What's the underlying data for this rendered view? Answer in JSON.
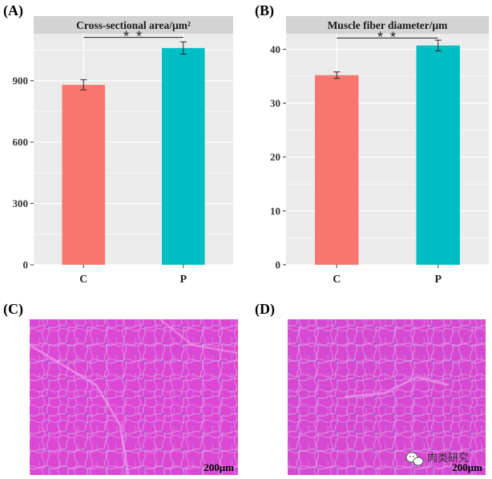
{
  "panels": {
    "A": "(A)",
    "B": "(B)",
    "C": "(C)",
    "D": "(D)"
  },
  "chart_data": [
    {
      "type": "bar",
      "title": "Cross-sectional area/μm²",
      "categories": [
        "C",
        "P"
      ],
      "values": [
        880,
        1060
      ],
      "errors": [
        25,
        30
      ],
      "colors": [
        "#F8766D",
        "#00BFC4"
      ],
      "ylim": [
        0,
        1130
      ],
      "yticks": [
        0,
        300,
        600,
        900
      ],
      "significance": "* *",
      "significance_y": 1112,
      "grid": true,
      "xlabel": "",
      "ylabel": ""
    },
    {
      "type": "bar",
      "title": "Muscle fiber diameter/μm",
      "categories": [
        "C",
        "P"
      ],
      "values": [
        35.2,
        40.7
      ],
      "errors": [
        0.6,
        1.0
      ],
      "colors": [
        "#F8766D",
        "#00BFC4"
      ],
      "ylim": [
        0,
        42.9
      ],
      "yticks": [
        0,
        10,
        20,
        30,
        40
      ],
      "significance": "* *",
      "significance_y": 42.1,
      "grid": true,
      "xlabel": "",
      "ylabel": ""
    }
  ],
  "micrographs": {
    "c_scale": "200μm",
    "d_scale": "200μm",
    "colors": {
      "tissue": "#E04ED6",
      "tissue_light": "#F070E6",
      "membrane": "#C7A9E6",
      "nuclei": "#5A3FB0"
    }
  },
  "watermark": {
    "icon": "wechat-icon",
    "text": "肉类研究"
  }
}
